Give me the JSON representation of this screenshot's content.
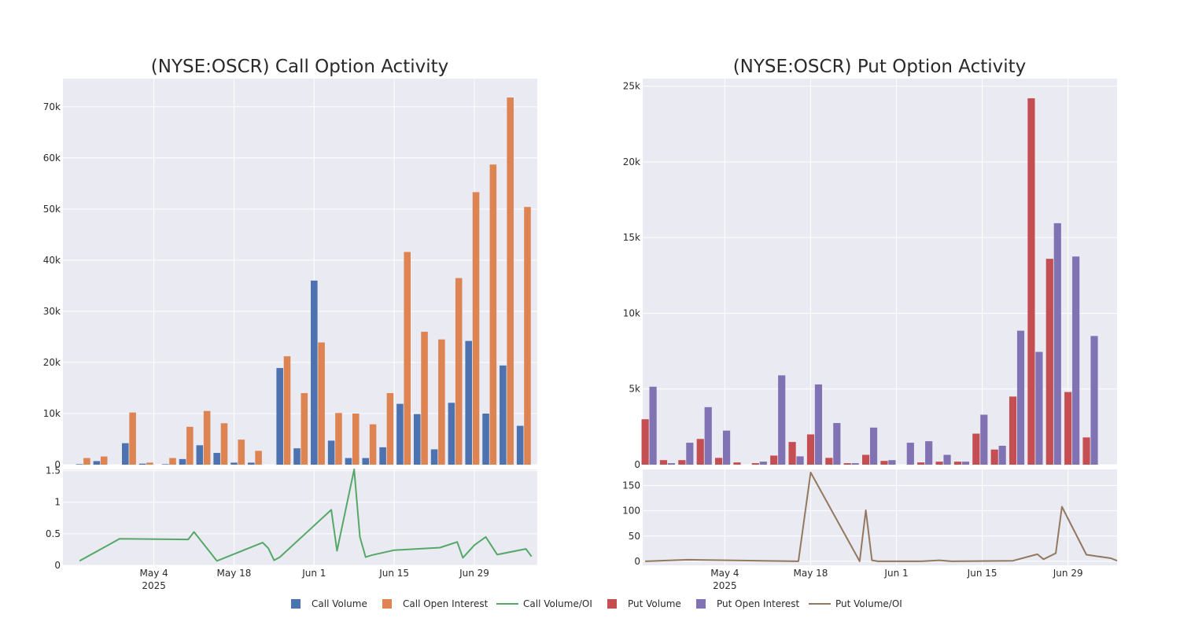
{
  "legend": {
    "items": [
      {
        "key": "call_volume",
        "label": "Call Volume",
        "kind": "box",
        "color": "#4c72b0"
      },
      {
        "key": "call_oi",
        "label": "Call Open Interest",
        "kind": "box",
        "color": "#dd8452"
      },
      {
        "key": "call_ratio",
        "label": "Call Volume/OI",
        "kind": "line",
        "color": "#55a868"
      },
      {
        "key": "put_volume",
        "label": "Put Volume",
        "kind": "box",
        "color": "#c44e52"
      },
      {
        "key": "put_oi",
        "label": "Put Open Interest",
        "kind": "box",
        "color": "#8172b3"
      },
      {
        "key": "put_ratio",
        "label": "Put Volume/OI",
        "kind": "line",
        "color": "#937860"
      }
    ]
  },
  "colors": {
    "plot_bg": "#eaeaf2",
    "grid": "#ffffff",
    "call_volume": "#4c72b0",
    "call_oi": "#dd8452",
    "call_ratio": "#55a868",
    "put_volume": "#c44e52",
    "put_oi": "#8172b3",
    "put_ratio": "#937860"
  },
  "chart_data": [
    {
      "type": "bar",
      "title": "(NYSE:OSCR) Call Option Activity",
      "xlabel": "",
      "ylabel": "",
      "ylim": [
        0,
        75500
      ],
      "yticks": [
        0,
        10000,
        20000,
        30000,
        40000,
        50000,
        60000,
        70000
      ],
      "ytick_labels": [
        "0",
        "10k",
        "20k",
        "30k",
        "40k",
        "50k",
        "60k",
        "70k"
      ],
      "xlim": [
        "2025-04-21",
        "2025-07-10"
      ],
      "xticks": [
        "2025-05-04",
        "2025-05-18",
        "2025-06-01",
        "2025-06-15",
        "2025-06-29"
      ],
      "xtick_labels": [
        "May 4",
        "May 18",
        "Jun 1",
        "Jun 15",
        "Jun 29"
      ],
      "xtick_year": "2025",
      "grid": true,
      "categories": [
        "2025-04-21",
        "2025-04-24",
        "2025-04-29",
        "2025-05-02",
        "2025-05-06",
        "2025-05-09",
        "2025-05-12",
        "2025-05-15",
        "2025-05-18",
        "2025-05-21",
        "2025-05-26",
        "2025-05-29",
        "2025-06-01",
        "2025-06-04",
        "2025-06-07",
        "2025-06-10",
        "2025-06-13",
        "2025-06-16",
        "2025-06-19",
        "2025-06-22",
        "2025-06-25",
        "2025-06-28",
        "2025-07-01",
        "2025-07-04",
        "2025-07-07"
      ],
      "series": [
        {
          "name": "Call Volume",
          "values": [
            100,
            700,
            4200,
            200,
            100,
            1100,
            3800,
            2300,
            400,
            400,
            18900,
            3200,
            36000,
            4700,
            1300,
            1300,
            3400,
            11900,
            9900,
            3000,
            12100,
            24200,
            10000,
            19400,
            7600
          ]
        },
        {
          "name": "Call Open Interest",
          "values": [
            1300,
            1600,
            10200,
            400,
            1300,
            7400,
            10500,
            8100,
            4900,
            2700,
            21200,
            14000,
            23900,
            10100,
            10000,
            7900,
            14000,
            41600,
            26000,
            24500,
            36500,
            53300,
            58700,
            71800,
            50400
          ]
        }
      ],
      "ratio": {
        "name": "Call Volume/OI",
        "ylim": [
          0,
          1.52
        ],
        "yticks": [
          0,
          0.5,
          1,
          1.5
        ],
        "ytick_labels": [
          "0",
          "0.5",
          "1",
          "1.5"
        ],
        "x": [
          "2025-04-21",
          "2025-04-28",
          "2025-05-10",
          "2025-05-11",
          "2025-05-15",
          "2025-05-23",
          "2025-05-24",
          "2025-05-25",
          "2025-05-26",
          "2025-06-04",
          "2025-06-05",
          "2025-06-08",
          "2025-06-09",
          "2025-06-10",
          "2025-06-11",
          "2025-06-15",
          "2025-06-23",
          "2025-06-26",
          "2025-06-27",
          "2025-06-29",
          "2025-07-01",
          "2025-07-03",
          "2025-07-08",
          "2025-07-09"
        ],
        "values": [
          0.07,
          0.42,
          0.41,
          0.53,
          0.07,
          0.36,
          0.27,
          0.08,
          0.13,
          0.88,
          0.23,
          1.52,
          0.45,
          0.13,
          0.16,
          0.24,
          0.28,
          0.37,
          0.12,
          0.32,
          0.45,
          0.17,
          0.26,
          0.14
        ]
      }
    },
    {
      "type": "bar",
      "title": "(NYSE:OSCR) Put Option Activity",
      "xlabel": "",
      "ylabel": "",
      "ylim": [
        0,
        25500
      ],
      "yticks": [
        0,
        5000,
        10000,
        15000,
        20000,
        25000
      ],
      "ytick_labels": [
        "0",
        "5k",
        "10k",
        "15k",
        "20k",
        "25k"
      ],
      "xlim": [
        "2025-04-21",
        "2025-07-07"
      ],
      "xticks": [
        "2025-05-04",
        "2025-05-18",
        "2025-06-01",
        "2025-06-15",
        "2025-06-29"
      ],
      "xtick_labels": [
        "May 4",
        "May 18",
        "Jun 1",
        "Jun 15",
        "Jun 29"
      ],
      "xtick_year": "2025",
      "grid": true,
      "categories": [
        "2025-04-21",
        "2025-04-24",
        "2025-04-27",
        "2025-04-30",
        "2025-05-03",
        "2025-05-06",
        "2025-05-09",
        "2025-05-12",
        "2025-05-15",
        "2025-05-18",
        "2025-05-21",
        "2025-05-24",
        "2025-05-27",
        "2025-05-30",
        "2025-06-02",
        "2025-06-05",
        "2025-06-08",
        "2025-06-11",
        "2025-06-14",
        "2025-06-17",
        "2025-06-20",
        "2025-06-23",
        "2025-06-26",
        "2025-06-29",
        "2025-07-02"
      ],
      "series": [
        {
          "name": "Put Volume",
          "values": [
            3000,
            300,
            300,
            1700,
            450,
            150,
            100,
            600,
            1500,
            2000,
            450,
            100,
            650,
            250,
            0,
            150,
            200,
            200,
            2050,
            1000,
            4500,
            24200,
            13600,
            4800,
            1800
          ]
        },
        {
          "name": "Put Open Interest",
          "values": [
            5150,
            100,
            1450,
            3800,
            2250,
            0,
            200,
            5900,
            550,
            5300,
            2750,
            100,
            2450,
            300,
            1450,
            1550,
            650,
            200,
            3300,
            1250,
            8850,
            7450,
            15950,
            13750,
            8500
          ]
        }
      ],
      "ratio": {
        "name": "Put Volume/OI",
        "ylim": [
          -8,
          182
        ],
        "yticks": [
          0,
          50,
          100,
          150
        ],
        "ytick_labels": [
          "0",
          "50",
          "100",
          "150"
        ],
        "x": [
          "2025-04-21",
          "2025-04-28",
          "2025-05-16",
          "2025-05-18",
          "2025-05-26",
          "2025-05-27",
          "2025-05-28",
          "2025-05-29",
          "2025-05-31",
          "2025-06-05",
          "2025-06-08",
          "2025-06-10",
          "2025-06-20",
          "2025-06-24",
          "2025-06-25",
          "2025-06-27",
          "2025-06-28",
          "2025-07-02",
          "2025-07-06",
          "2025-07-07"
        ],
        "values": [
          0,
          3,
          0,
          176,
          0,
          101,
          2,
          0,
          0,
          0,
          2,
          0,
          1,
          14,
          4,
          16,
          108,
          13,
          6,
          1
        ]
      }
    }
  ]
}
